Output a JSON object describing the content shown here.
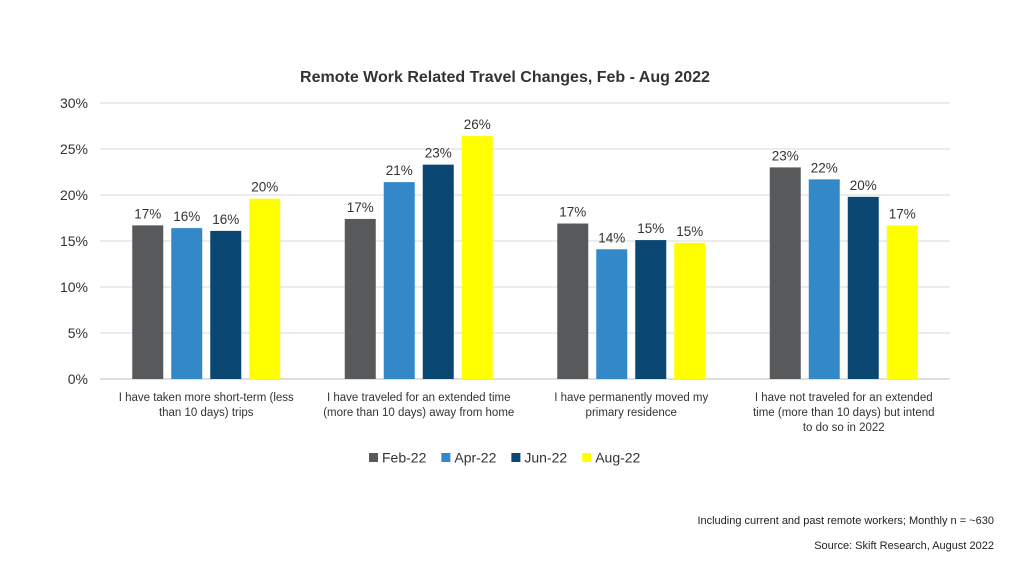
{
  "chart_data": {
    "type": "bar",
    "title": "Remote Work Related Travel Changes, Feb - Aug 2022",
    "categories": [
      [
        "I have taken more short-term (less",
        "than 10 days) trips"
      ],
      [
        "I have traveled for an extended time",
        "(more than 10 days) away from home"
      ],
      [
        "I have permanently moved my",
        "primary residence"
      ],
      [
        "I have not traveled for an extended",
        "time (more than 10 days) but intend",
        "to do so in 2022"
      ]
    ],
    "series": [
      {
        "name": "Feb-22",
        "color": "#58595b",
        "values": [
          16.7,
          17.4,
          16.9,
          23.0
        ],
        "labels": [
          "17%",
          "17%",
          "17%",
          "23%"
        ]
      },
      {
        "name": "Apr-22",
        "color": "#3388c8",
        "values": [
          16.4,
          21.4,
          14.1,
          21.7
        ],
        "labels": [
          "16%",
          "21%",
          "14%",
          "22%"
        ]
      },
      {
        "name": "Jun-22",
        "color": "#0b4773",
        "values": [
          16.1,
          23.3,
          15.1,
          19.8
        ],
        "labels": [
          "16%",
          "23%",
          "15%",
          "20%"
        ]
      },
      {
        "name": "Aug-22",
        "color": "#ffff00",
        "values": [
          19.6,
          26.4,
          14.8,
          16.7
        ],
        "labels": [
          "20%",
          "26%",
          "15%",
          "17%"
        ]
      }
    ],
    "ylim": [
      0,
      30
    ],
    "yticks": [
      0,
      5,
      10,
      15,
      20,
      25,
      30
    ],
    "ytick_labels": [
      "0%",
      "5%",
      "10%",
      "15%",
      "20%",
      "25%",
      "30%"
    ],
    "xlabel": "",
    "ylabel": "",
    "grid": true,
    "legend_position": "bottom-center"
  },
  "footnotes": {
    "sample_note": "Including current and past remote workers; Monthly n = ~630",
    "source": "Source: Skift Research, August 2022"
  }
}
